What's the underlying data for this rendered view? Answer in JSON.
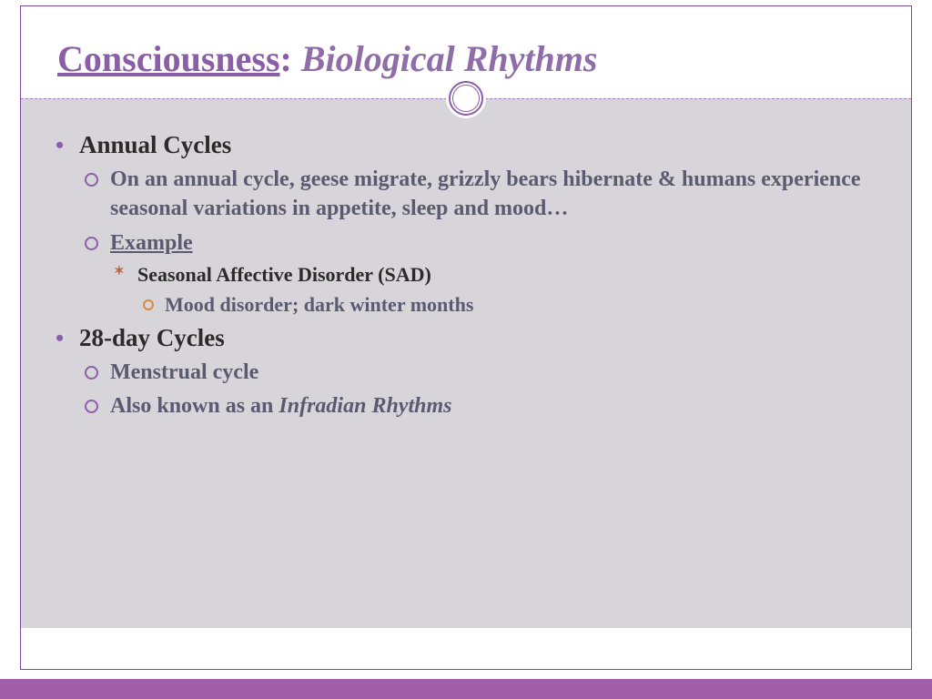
{
  "colors": {
    "frame_border": "#7b4b9e",
    "title_text": "#8b5fa8",
    "title_italic_text": "#8e6da8",
    "dashed_line": "#a87fbc",
    "circle_border": "#8b5fa8",
    "content_bg": "#d7d5d9",
    "body_text_dark": "#2b2b2b",
    "body_text_muted": "#5a5b70",
    "bullet_lvl1": "#8b5fa8",
    "bullet_lvl2": "#8b5fa8",
    "bullet_lvl3": "#b56a46",
    "bullet_lvl4": "#d88b3f",
    "bottom_bar": "#a25ea8"
  },
  "fonts": {
    "family": "Georgia serif",
    "title_size_pt": 30,
    "lvl1_size_pt": 20,
    "lvl2_size_pt": 18,
    "lvl3_size_pt": 16,
    "lvl4_size_pt": 16
  },
  "title": {
    "underline_part": "Consciousness",
    "colon": ":",
    "italic_part": " Biological Rhythms"
  },
  "content": {
    "items": [
      {
        "heading": "Annual Cycles",
        "sub": [
          {
            "text": "On an annual cycle, geese migrate, grizzly bears hibernate & humans experience seasonal variations in appetite, sleep and mood…"
          },
          {
            "label": "Example",
            "sub": [
              {
                "text": "Seasonal Affective Disorder (SAD)",
                "sub": [
                  {
                    "text": "Mood disorder; dark winter months"
                  }
                ]
              }
            ]
          }
        ]
      },
      {
        "heading": "28-day Cycles",
        "sub": [
          {
            "text": "Menstrual cycle"
          },
          {
            "prefix": "Also known as an ",
            "italic": "Infradian Rhythms"
          }
        ]
      }
    ]
  }
}
